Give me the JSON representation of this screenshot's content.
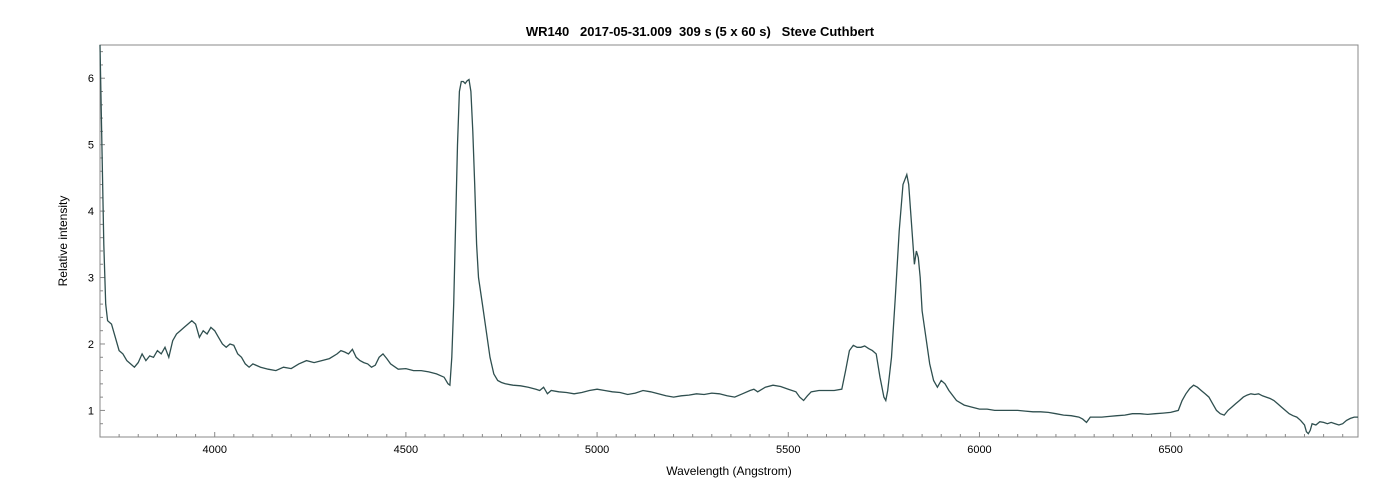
{
  "chart_data": {
    "type": "line",
    "title": "WR140   2017-05-31.009  309 s (5 x 60 s)   Steve Cuthbert",
    "xlabel": "Wavelength (Angstrom)",
    "ylabel": "Relative intensity",
    "xlim": [
      3700,
      6990
    ],
    "ylim": [
      0.6,
      6.5
    ],
    "x_ticks": [
      4000,
      4500,
      5000,
      5500,
      6000,
      6500
    ],
    "y_ticks": [
      1,
      2,
      3,
      4,
      5,
      6
    ],
    "grid": false,
    "series": [
      {
        "color": "#2f4f4f",
        "points": [
          [
            3700,
            6.5
          ],
          [
            3705,
            5.0
          ],
          [
            3710,
            3.5
          ],
          [
            3715,
            2.6
          ],
          [
            3720,
            2.35
          ],
          [
            3730,
            2.3
          ],
          [
            3740,
            2.1
          ],
          [
            3750,
            1.9
          ],
          [
            3760,
            1.85
          ],
          [
            3770,
            1.75
          ],
          [
            3780,
            1.7
          ],
          [
            3790,
            1.65
          ],
          [
            3800,
            1.72
          ],
          [
            3810,
            1.85
          ],
          [
            3820,
            1.75
          ],
          [
            3830,
            1.82
          ],
          [
            3840,
            1.8
          ],
          [
            3850,
            1.9
          ],
          [
            3860,
            1.85
          ],
          [
            3870,
            1.95
          ],
          [
            3880,
            1.8
          ],
          [
            3890,
            2.05
          ],
          [
            3900,
            2.15
          ],
          [
            3910,
            2.2
          ],
          [
            3920,
            2.25
          ],
          [
            3930,
            2.3
          ],
          [
            3940,
            2.35
          ],
          [
            3950,
            2.3
          ],
          [
            3960,
            2.1
          ],
          [
            3970,
            2.2
          ],
          [
            3980,
            2.15
          ],
          [
            3990,
            2.25
          ],
          [
            4000,
            2.2
          ],
          [
            4010,
            2.1
          ],
          [
            4020,
            2.0
          ],
          [
            4030,
            1.95
          ],
          [
            4040,
            2.0
          ],
          [
            4050,
            1.98
          ],
          [
            4060,
            1.85
          ],
          [
            4070,
            1.8
          ],
          [
            4080,
            1.7
          ],
          [
            4090,
            1.65
          ],
          [
            4100,
            1.7
          ],
          [
            4120,
            1.65
          ],
          [
            4140,
            1.62
          ],
          [
            4160,
            1.6
          ],
          [
            4180,
            1.65
          ],
          [
            4200,
            1.63
          ],
          [
            4220,
            1.7
          ],
          [
            4240,
            1.75
          ],
          [
            4260,
            1.72
          ],
          [
            4280,
            1.75
          ],
          [
            4300,
            1.78
          ],
          [
            4320,
            1.85
          ],
          [
            4330,
            1.9
          ],
          [
            4340,
            1.88
          ],
          [
            4350,
            1.85
          ],
          [
            4360,
            1.92
          ],
          [
            4370,
            1.8
          ],
          [
            4380,
            1.75
          ],
          [
            4390,
            1.72
          ],
          [
            4400,
            1.7
          ],
          [
            4410,
            1.65
          ],
          [
            4420,
            1.68
          ],
          [
            4430,
            1.8
          ],
          [
            4440,
            1.85
          ],
          [
            4450,
            1.78
          ],
          [
            4460,
            1.7
          ],
          [
            4480,
            1.62
          ],
          [
            4500,
            1.63
          ],
          [
            4520,
            1.6
          ],
          [
            4540,
            1.6
          ],
          [
            4560,
            1.58
          ],
          [
            4580,
            1.55
          ],
          [
            4600,
            1.5
          ],
          [
            4610,
            1.4
          ],
          [
            4615,
            1.38
          ],
          [
            4620,
            1.8
          ],
          [
            4625,
            2.6
          ],
          [
            4630,
            3.8
          ],
          [
            4635,
            5.0
          ],
          [
            4640,
            5.8
          ],
          [
            4645,
            5.95
          ],
          [
            4650,
            5.95
          ],
          [
            4655,
            5.92
          ],
          [
            4660,
            5.96
          ],
          [
            4665,
            5.98
          ],
          [
            4670,
            5.8
          ],
          [
            4675,
            5.2
          ],
          [
            4680,
            4.4
          ],
          [
            4685,
            3.5
          ],
          [
            4690,
            3.0
          ],
          [
            4700,
            2.6
          ],
          [
            4710,
            2.2
          ],
          [
            4720,
            1.8
          ],
          [
            4730,
            1.55
          ],
          [
            4740,
            1.45
          ],
          [
            4750,
            1.42
          ],
          [
            4760,
            1.4
          ],
          [
            4780,
            1.38
          ],
          [
            4800,
            1.37
          ],
          [
            4820,
            1.35
          ],
          [
            4840,
            1.32
          ],
          [
            4850,
            1.3
          ],
          [
            4860,
            1.35
          ],
          [
            4870,
            1.25
          ],
          [
            4880,
            1.3
          ],
          [
            4900,
            1.28
          ],
          [
            4920,
            1.27
          ],
          [
            4940,
            1.25
          ],
          [
            4960,
            1.27
          ],
          [
            4980,
            1.3
          ],
          [
            5000,
            1.32
          ],
          [
            5020,
            1.3
          ],
          [
            5040,
            1.28
          ],
          [
            5060,
            1.27
          ],
          [
            5080,
            1.24
          ],
          [
            5100,
            1.26
          ],
          [
            5120,
            1.3
          ],
          [
            5140,
            1.28
          ],
          [
            5160,
            1.25
          ],
          [
            5180,
            1.22
          ],
          [
            5200,
            1.2
          ],
          [
            5220,
            1.22
          ],
          [
            5240,
            1.23
          ],
          [
            5260,
            1.25
          ],
          [
            5280,
            1.24
          ],
          [
            5300,
            1.26
          ],
          [
            5320,
            1.25
          ],
          [
            5340,
            1.22
          ],
          [
            5360,
            1.2
          ],
          [
            5380,
            1.25
          ],
          [
            5400,
            1.3
          ],
          [
            5410,
            1.32
          ],
          [
            5420,
            1.28
          ],
          [
            5440,
            1.35
          ],
          [
            5460,
            1.38
          ],
          [
            5480,
            1.36
          ],
          [
            5500,
            1.32
          ],
          [
            5520,
            1.28
          ],
          [
            5530,
            1.2
          ],
          [
            5540,
            1.15
          ],
          [
            5550,
            1.22
          ],
          [
            5560,
            1.28
          ],
          [
            5580,
            1.3
          ],
          [
            5600,
            1.3
          ],
          [
            5620,
            1.3
          ],
          [
            5640,
            1.32
          ],
          [
            5650,
            1.6
          ],
          [
            5660,
            1.9
          ],
          [
            5670,
            1.98
          ],
          [
            5680,
            1.95
          ],
          [
            5690,
            1.95
          ],
          [
            5700,
            1.97
          ],
          [
            5710,
            1.93
          ],
          [
            5720,
            1.9
          ],
          [
            5730,
            1.85
          ],
          [
            5740,
            1.5
          ],
          [
            5750,
            1.2
          ],
          [
            5755,
            1.15
          ],
          [
            5760,
            1.3
          ],
          [
            5770,
            1.8
          ],
          [
            5780,
            2.7
          ],
          [
            5790,
            3.7
          ],
          [
            5800,
            4.4
          ],
          [
            5810,
            4.55
          ],
          [
            5815,
            4.4
          ],
          [
            5820,
            4.0
          ],
          [
            5825,
            3.6
          ],
          [
            5830,
            3.2
          ],
          [
            5835,
            3.4
          ],
          [
            5840,
            3.3
          ],
          [
            5845,
            3.0
          ],
          [
            5850,
            2.5
          ],
          [
            5860,
            2.1
          ],
          [
            5870,
            1.7
          ],
          [
            5880,
            1.45
          ],
          [
            5890,
            1.35
          ],
          [
            5900,
            1.45
          ],
          [
            5910,
            1.4
          ],
          [
            5920,
            1.3
          ],
          [
            5940,
            1.15
          ],
          [
            5960,
            1.08
          ],
          [
            5980,
            1.05
          ],
          [
            6000,
            1.02
          ],
          [
            6020,
            1.02
          ],
          [
            6040,
            1.0
          ],
          [
            6060,
            1.0
          ],
          [
            6080,
            1.0
          ],
          [
            6100,
            1.0
          ],
          [
            6120,
            0.99
          ],
          [
            6140,
            0.98
          ],
          [
            6160,
            0.98
          ],
          [
            6180,
            0.97
          ],
          [
            6200,
            0.95
          ],
          [
            6220,
            0.93
          ],
          [
            6240,
            0.92
          ],
          [
            6260,
            0.9
          ],
          [
            6270,
            0.87
          ],
          [
            6280,
            0.82
          ],
          [
            6290,
            0.9
          ],
          [
            6300,
            0.9
          ],
          [
            6320,
            0.9
          ],
          [
            6340,
            0.91
          ],
          [
            6360,
            0.92
          ],
          [
            6380,
            0.93
          ],
          [
            6400,
            0.95
          ],
          [
            6420,
            0.95
          ],
          [
            6440,
            0.94
          ],
          [
            6460,
            0.95
          ],
          [
            6480,
            0.96
          ],
          [
            6500,
            0.97
          ],
          [
            6520,
            1.0
          ],
          [
            6530,
            1.15
          ],
          [
            6540,
            1.25
          ],
          [
            6550,
            1.33
          ],
          [
            6560,
            1.38
          ],
          [
            6570,
            1.35
          ],
          [
            6580,
            1.3
          ],
          [
            6590,
            1.25
          ],
          [
            6600,
            1.2
          ],
          [
            6610,
            1.1
          ],
          [
            6620,
            1.0
          ],
          [
            6630,
            0.95
          ],
          [
            6640,
            0.93
          ],
          [
            6650,
            1.0
          ],
          [
            6660,
            1.05
          ],
          [
            6670,
            1.1
          ],
          [
            6680,
            1.15
          ],
          [
            6690,
            1.2
          ],
          [
            6700,
            1.23
          ],
          [
            6710,
            1.25
          ],
          [
            6720,
            1.24
          ],
          [
            6730,
            1.25
          ],
          [
            6740,
            1.22
          ],
          [
            6750,
            1.2
          ],
          [
            6760,
            1.18
          ],
          [
            6770,
            1.15
          ],
          [
            6780,
            1.1
          ],
          [
            6790,
            1.05
          ],
          [
            6800,
            1.0
          ],
          [
            6810,
            0.95
          ],
          [
            6820,
            0.92
          ],
          [
            6830,
            0.9
          ],
          [
            6840,
            0.85
          ],
          [
            6850,
            0.78
          ],
          [
            6855,
            0.68
          ],
          [
            6860,
            0.65
          ],
          [
            6865,
            0.7
          ],
          [
            6870,
            0.8
          ],
          [
            6880,
            0.78
          ],
          [
            6890,
            0.83
          ],
          [
            6900,
            0.82
          ],
          [
            6910,
            0.8
          ],
          [
            6920,
            0.82
          ],
          [
            6930,
            0.8
          ],
          [
            6940,
            0.78
          ],
          [
            6950,
            0.8
          ],
          [
            6960,
            0.85
          ],
          [
            6970,
            0.88
          ],
          [
            6980,
            0.9
          ],
          [
            6990,
            0.9
          ]
        ]
      }
    ]
  }
}
